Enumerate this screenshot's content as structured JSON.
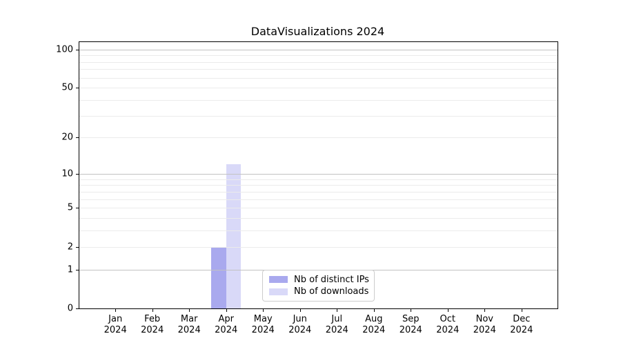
{
  "chart_data": {
    "type": "bar",
    "title": "DataVisualizations 2024",
    "scale": "log1p",
    "categories": [
      "Jan",
      "Feb",
      "Mar",
      "Apr",
      "May",
      "Jun",
      "Jul",
      "Aug",
      "Sep",
      "Oct",
      "Nov",
      "Dec"
    ],
    "year_label": "2024",
    "series": [
      {
        "name": "Nb of distinct IPs",
        "color": "#a9a9ee",
        "values": [
          0,
          0,
          0,
          2,
          0,
          0,
          0,
          0,
          0,
          0,
          0,
          0
        ]
      },
      {
        "name": "Nb of downloads",
        "color": "#d9d9f8",
        "values": [
          0,
          0,
          0,
          12,
          0,
          0,
          0,
          0,
          0,
          0,
          0,
          0
        ]
      }
    ],
    "yticks": [
      100,
      50,
      20,
      10,
      5,
      2,
      1,
      0
    ],
    "major_gridlines": [
      100,
      10,
      1
    ],
    "minor_gridlines": [
      90,
      80,
      70,
      60,
      50,
      40,
      30,
      20,
      9,
      8,
      7,
      6,
      5,
      4,
      3,
      2
    ],
    "ylim": [
      0,
      114
    ],
    "xlim": [
      -0.975,
      11.975
    ],
    "bar_width": 0.4,
    "bar_offsets": [
      -0.2,
      0.2
    ],
    "legend_position": "lower-center",
    "grid": "on",
    "colors": {
      "major_grid": "#c2c2c2",
      "minor_grid": "#ebebeb",
      "spine": "#000000",
      "text": "#000000"
    }
  }
}
